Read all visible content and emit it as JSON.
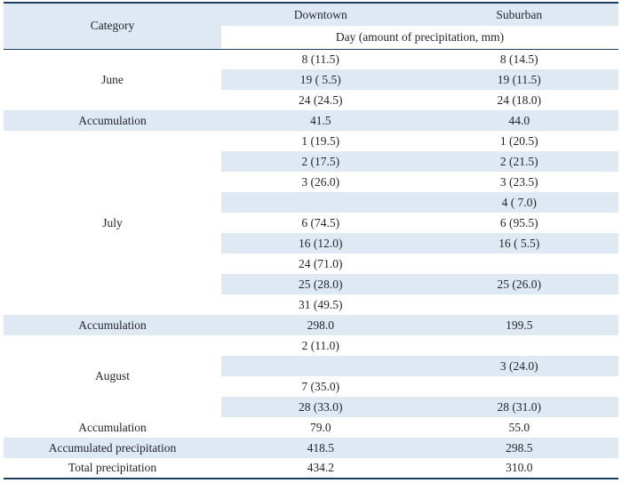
{
  "colors": {
    "stripe_blue": "#dfe9f4",
    "border_navy": "#1d3c61",
    "text": "#23262e"
  },
  "table": {
    "header": {
      "category": "Category",
      "columns": [
        "Downtown",
        "Suburban"
      ],
      "subheader": "Day (amount of precipitation, mm)"
    },
    "groups": [
      {
        "type": "month",
        "label": "June",
        "rows": [
          [
            "8 (11.5)",
            "8 (14.5)"
          ],
          [
            "19 ( 5.5)",
            "19 (11.5)"
          ],
          [
            "24 (24.5)",
            "24 (18.0)"
          ]
        ]
      },
      {
        "type": "summary",
        "label": "Accumulation",
        "values": [
          "41.5",
          "44.0"
        ]
      },
      {
        "type": "month",
        "label": "July",
        "rows": [
          [
            "1 (19.5)",
            "1 (20.5)"
          ],
          [
            "2 (17.5)",
            "2 (21.5)"
          ],
          [
            "3 (26.0)",
            "3 (23.5)"
          ],
          [
            "",
            "4 ( 7.0)"
          ],
          [
            "6 (74.5)",
            "6 (95.5)"
          ],
          [
            "16 (12.0)",
            "16 ( 5.5)"
          ],
          [
            "24 (71.0)",
            ""
          ],
          [
            "25 (28.0)",
            "25 (26.0)"
          ],
          [
            "31 (49.5)",
            ""
          ]
        ]
      },
      {
        "type": "summary",
        "label": "Accumulation",
        "values": [
          "298.0",
          "199.5"
        ]
      },
      {
        "type": "month",
        "label": "August",
        "rows": [
          [
            "2 (11.0)",
            ""
          ],
          [
            "",
            "3 (24.0)"
          ],
          [
            "7 (35.0)",
            ""
          ],
          [
            "28 (33.0)",
            "28 (31.0)"
          ]
        ]
      },
      {
        "type": "summary",
        "label": "Accumulation",
        "values": [
          "79.0",
          "55.0"
        ]
      },
      {
        "type": "summary",
        "label": "Accumulated precipitation",
        "values": [
          "418.5",
          "298.5"
        ]
      },
      {
        "type": "summary",
        "label": "Total precipitation",
        "values": [
          "434.2",
          "310.0"
        ]
      }
    ]
  }
}
